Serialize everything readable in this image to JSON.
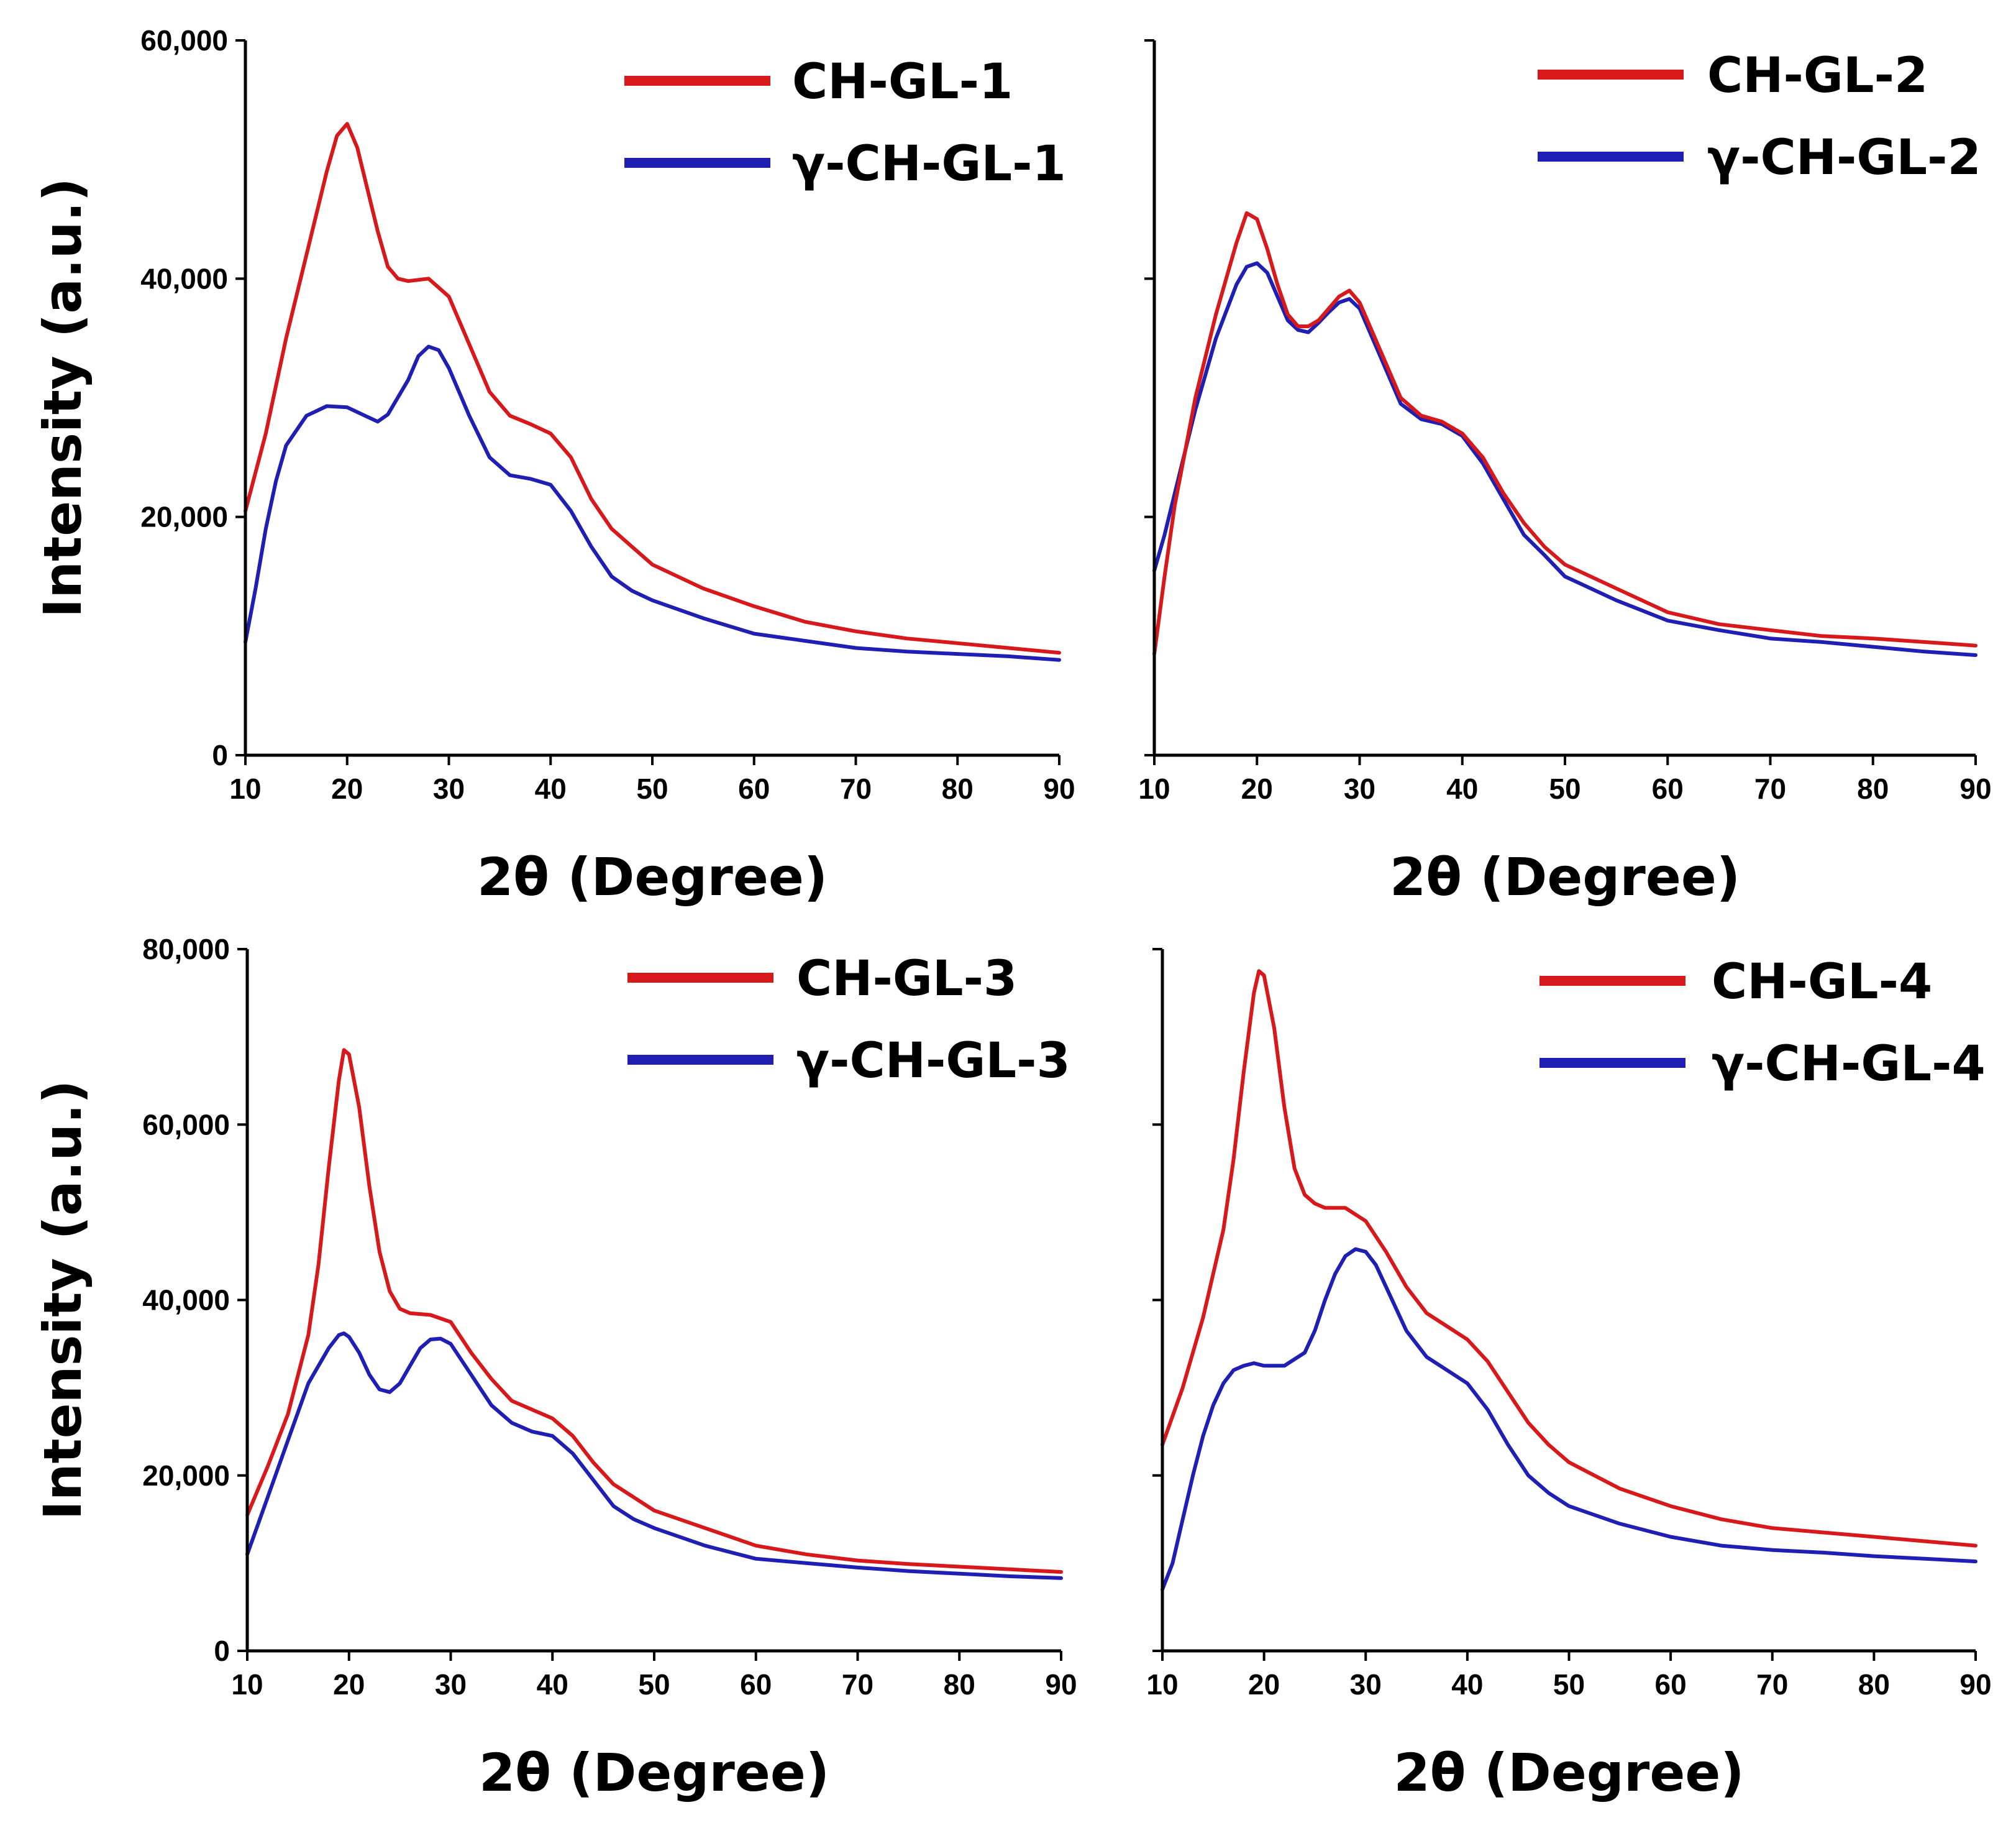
{
  "figure": {
    "x_ticks": [
      "10",
      "20",
      "30",
      "40",
      "50",
      "60",
      "70",
      "80",
      "90"
    ]
  },
  "chart_data": [
    {
      "type": "line",
      "panel": "top-left",
      "xlabel": "2θ (Degree)",
      "ylabel": "Intensity (a.u.)",
      "xlim": [
        10,
        90
      ],
      "ylim": [
        0,
        60000
      ],
      "x_ticks": [
        10,
        20,
        30,
        40,
        50,
        60,
        70,
        80,
        90
      ],
      "y_ticks": [
        0,
        20000,
        40000,
        60000
      ],
      "y_tick_labels": [
        "0",
        "20,000",
        "40,000",
        "60,000"
      ],
      "show_y_tick_labels": true,
      "legend": "top-right",
      "series": [
        {
          "name": "CH-GL-1",
          "color": "#d7191c",
          "x": [
            10,
            12,
            14,
            16,
            18,
            19,
            20,
            21,
            22,
            23,
            24,
            25,
            26,
            28,
            30,
            32,
            34,
            36,
            38,
            40,
            42,
            44,
            46,
            48,
            50,
            55,
            60,
            65,
            70,
            75,
            80,
            85,
            90
          ],
          "y": [
            20500,
            27000,
            35000,
            42000,
            49000,
            52000,
            53000,
            51000,
            47500,
            44000,
            41000,
            40000,
            39800,
            40000,
            38500,
            34500,
            30500,
            28500,
            27800,
            27000,
            25000,
            21500,
            19000,
            17500,
            16000,
            14000,
            12500,
            11200,
            10400,
            9800,
            9400,
            9000,
            8600
          ]
        },
        {
          "name": "γ-CH-GL-1",
          "color": "#1f1fb4",
          "x": [
            10,
            11,
            12,
            13,
            14,
            16,
            18,
            20,
            22,
            23,
            24,
            26,
            27,
            28,
            29,
            30,
            32,
            34,
            36,
            38,
            40,
            42,
            44,
            46,
            48,
            50,
            55,
            60,
            65,
            70,
            75,
            80,
            85,
            90
          ],
          "y": [
            9500,
            14000,
            19000,
            23000,
            26000,
            28500,
            29300,
            29200,
            28400,
            28000,
            28600,
            31500,
            33500,
            34300,
            34000,
            32500,
            28500,
            25000,
            23500,
            23200,
            22700,
            20500,
            17500,
            15000,
            13800,
            13000,
            11500,
            10200,
            9600,
            9000,
            8700,
            8500,
            8300,
            8000
          ]
        }
      ]
    },
    {
      "type": "line",
      "panel": "top-right",
      "xlabel": "2θ (Degree)",
      "xlim": [
        10,
        90
      ],
      "ylim": [
        0,
        60000
      ],
      "x_ticks": [
        10,
        20,
        30,
        40,
        50,
        60,
        70,
        80,
        90
      ],
      "y_ticks": [
        0,
        20000,
        40000,
        60000
      ],
      "show_y_tick_labels": false,
      "legend": "top-right",
      "series": [
        {
          "name": "CH-GL-2",
          "color": "#d7191c",
          "x": [
            10,
            11,
            12,
            14,
            16,
            18,
            19,
            20,
            21,
            22,
            23,
            24,
            25,
            26,
            27,
            28,
            29,
            30,
            32,
            34,
            36,
            38,
            40,
            42,
            44,
            46,
            48,
            50,
            55,
            60,
            65,
            70,
            75,
            80,
            85,
            90
          ],
          "y": [
            8500,
            15000,
            21000,
            30000,
            37000,
            43000,
            45500,
            45000,
            42500,
            39500,
            37000,
            36000,
            36000,
            36500,
            37500,
            38500,
            39000,
            38000,
            34000,
            30000,
            28500,
            28000,
            27000,
            25000,
            22000,
            19500,
            17500,
            16000,
            14000,
            12000,
            11000,
            10500,
            10000,
            9800,
            9500,
            9200
          ]
        },
        {
          "name": "γ-CH-GL-2",
          "color": "#1f1fb4",
          "x": [
            10,
            11,
            12,
            14,
            16,
            18,
            19,
            20,
            21,
            22,
            23,
            24,
            25,
            26,
            27,
            28,
            29,
            30,
            32,
            34,
            36,
            38,
            40,
            42,
            44,
            46,
            48,
            50,
            55,
            60,
            65,
            70,
            75,
            80,
            85,
            90
          ],
          "y": [
            15500,
            18500,
            22000,
            29000,
            35000,
            39500,
            41000,
            41300,
            40500,
            38500,
            36500,
            35700,
            35500,
            36300,
            37200,
            38000,
            38300,
            37500,
            33500,
            29500,
            28200,
            27800,
            26800,
            24500,
            21500,
            18500,
            16800,
            15000,
            13000,
            11300,
            10500,
            9800,
            9500,
            9100,
            8700,
            8400
          ]
        }
      ]
    },
    {
      "type": "line",
      "panel": "bottom-left",
      "xlabel": "2θ (Degree)",
      "ylabel": "Intensity (a.u.)",
      "xlim": [
        10,
        90
      ],
      "ylim": [
        0,
        80000
      ],
      "x_ticks": [
        10,
        20,
        30,
        40,
        50,
        60,
        70,
        80,
        90
      ],
      "y_ticks": [
        0,
        20000,
        40000,
        60000,
        80000
      ],
      "y_tick_labels": [
        "0",
        "20,000",
        "40,000",
        "60,000",
        "80,000"
      ],
      "show_y_tick_labels": true,
      "legend": "top-right",
      "series": [
        {
          "name": "CH-GL-3",
          "color": "#d7191c",
          "x": [
            10,
            12,
            14,
            16,
            17,
            18,
            19,
            19.5,
            20,
            21,
            22,
            23,
            24,
            25,
            26,
            28,
            30,
            32,
            34,
            36,
            38,
            40,
            42,
            44,
            46,
            48,
            50,
            55,
            60,
            65,
            70,
            75,
            80,
            85,
            90
          ],
          "y": [
            15500,
            21000,
            27000,
            36000,
            44000,
            55000,
            65000,
            68500,
            68000,
            62000,
            53000,
            45500,
            41000,
            39000,
            38500,
            38300,
            37500,
            34000,
            31000,
            28500,
            27500,
            26500,
            24500,
            21500,
            19000,
            17500,
            16000,
            14000,
            12000,
            11000,
            10300,
            9900,
            9600,
            9300,
            9000
          ]
        },
        {
          "name": "γ-CH-GL-3",
          "color": "#1f1fb4",
          "x": [
            10,
            12,
            14,
            16,
            18,
            19,
            19.5,
            20,
            21,
            22,
            23,
            24,
            25,
            26,
            27,
            28,
            29,
            30,
            32,
            34,
            36,
            38,
            40,
            42,
            44,
            46,
            48,
            50,
            55,
            60,
            65,
            70,
            75,
            80,
            85,
            90
          ],
          "y": [
            11000,
            17500,
            24000,
            30500,
            34500,
            36000,
            36200,
            35800,
            34000,
            31500,
            29800,
            29500,
            30500,
            32500,
            34500,
            35500,
            35600,
            35000,
            31500,
            28000,
            26000,
            25000,
            24500,
            22500,
            19500,
            16500,
            15000,
            14000,
            12000,
            10500,
            10000,
            9500,
            9100,
            8800,
            8500,
            8300
          ]
        }
      ]
    },
    {
      "type": "line",
      "panel": "bottom-right",
      "xlabel": "2θ (Degree)",
      "xlim": [
        10,
        90
      ],
      "ylim": [
        0,
        80000
      ],
      "x_ticks": [
        10,
        20,
        30,
        40,
        50,
        60,
        70,
        80,
        90
      ],
      "y_ticks": [
        0,
        20000,
        40000,
        60000,
        80000
      ],
      "show_y_tick_labels": false,
      "legend": "top-right",
      "series": [
        {
          "name": "CH-GL-4",
          "color": "#d7191c",
          "x": [
            10,
            12,
            14,
            16,
            17,
            18,
            19,
            19.5,
            20,
            21,
            22,
            23,
            24,
            25,
            26,
            28,
            30,
            32,
            34,
            36,
            38,
            40,
            42,
            44,
            46,
            48,
            50,
            55,
            60,
            65,
            70,
            75,
            80,
            85,
            90
          ],
          "y": [
            23500,
            30000,
            38000,
            48000,
            56000,
            66000,
            75000,
            77500,
            77000,
            71000,
            62000,
            55000,
            52000,
            51000,
            50500,
            50500,
            49000,
            45500,
            41500,
            38500,
            37000,
            35500,
            33000,
            29500,
            26000,
            23500,
            21500,
            18500,
            16500,
            15000,
            14000,
            13500,
            13000,
            12500,
            12000
          ]
        },
        {
          "name": "γ-CH-GL-4",
          "color": "#1f1fb4",
          "x": [
            10,
            11,
            12,
            13,
            14,
            15,
            16,
            17,
            18,
            19,
            20,
            22,
            24,
            25,
            26,
            27,
            28,
            29,
            30,
            31,
            32,
            34,
            36,
            38,
            40,
            42,
            44,
            46,
            48,
            50,
            55,
            60,
            65,
            70,
            75,
            80,
            85,
            90
          ],
          "y": [
            7000,
            10000,
            15000,
            20000,
            24500,
            28000,
            30500,
            32000,
            32500,
            32800,
            32500,
            32500,
            34000,
            36500,
            40000,
            43000,
            45000,
            45800,
            45500,
            44000,
            41500,
            36500,
            33500,
            32000,
            30500,
            27500,
            23500,
            20000,
            18000,
            16500,
            14500,
            13000,
            12000,
            11500,
            11200,
            10800,
            10500,
            10200
          ]
        }
      ]
    }
  ]
}
